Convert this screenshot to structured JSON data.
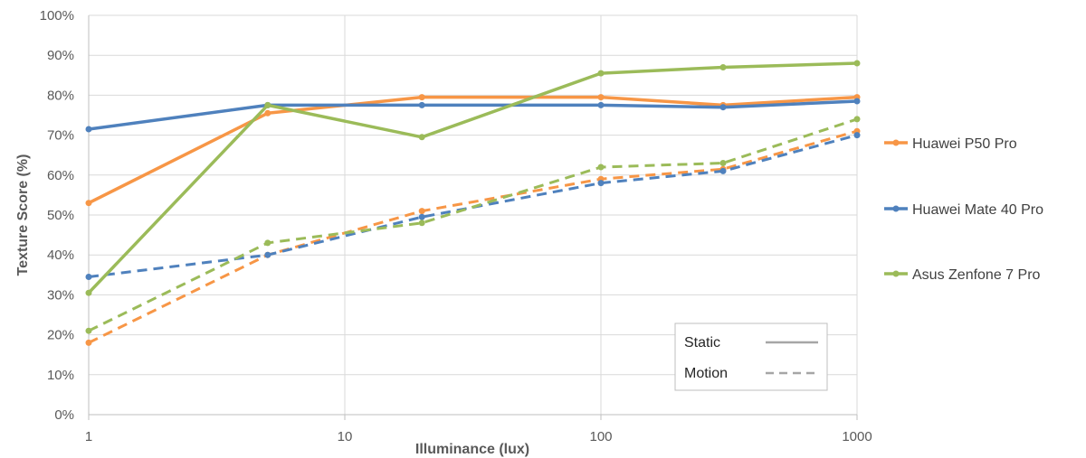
{
  "chart_data": {
    "type": "line",
    "xlabel": "Illuminance (lux)",
    "ylabel": "Texture Score (%)",
    "x_scale": "log",
    "xlim": [
      1,
      1000
    ],
    "ylim": [
      0,
      100
    ],
    "x_ticks": [
      "1",
      "10",
      "100",
      "1000"
    ],
    "y_ticks": [
      "0%",
      "10%",
      "20%",
      "30%",
      "40%",
      "50%",
      "60%",
      "70%",
      "80%",
      "90%",
      "100%"
    ],
    "grid": "both",
    "legend_position": "right",
    "style_legend": {
      "static_label": "Static",
      "motion_label": "Motion"
    },
    "series": [
      {
        "name": "Huawei P50 Pro",
        "color": "#f79646",
        "static": [
          [
            1,
            53
          ],
          [
            5,
            75.5
          ],
          [
            20,
            79.5
          ],
          [
            100,
            79.5
          ],
          [
            300,
            77.5
          ],
          [
            1000,
            79.5
          ]
        ],
        "motion": [
          [
            1,
            18
          ],
          [
            5,
            40
          ],
          [
            20,
            51
          ],
          [
            100,
            59
          ],
          [
            300,
            61.5
          ],
          [
            1000,
            71
          ]
        ]
      },
      {
        "name": "Huawei Mate 40 Pro",
        "color": "#4f81bd",
        "static": [
          [
            1,
            71.5
          ],
          [
            5,
            77.5
          ],
          [
            20,
            77.5
          ],
          [
            100,
            77.5
          ],
          [
            300,
            77
          ],
          [
            1000,
            78.5
          ]
        ],
        "motion": [
          [
            1,
            34.5
          ],
          [
            5,
            40
          ],
          [
            20,
            49.5
          ],
          [
            100,
            58
          ],
          [
            300,
            61
          ],
          [
            1000,
            70
          ]
        ]
      },
      {
        "name": "Asus Zenfone 7 Pro",
        "color": "#9bbb59",
        "static": [
          [
            1,
            30.5
          ],
          [
            5,
            77.5
          ],
          [
            20,
            69.5
          ],
          [
            100,
            85.5
          ],
          [
            300,
            87
          ],
          [
            1000,
            88
          ]
        ],
        "motion": [
          [
            1,
            21
          ],
          [
            5,
            43
          ],
          [
            20,
            48
          ],
          [
            100,
            62
          ],
          [
            300,
            63
          ],
          [
            1000,
            74
          ]
        ]
      }
    ]
  }
}
